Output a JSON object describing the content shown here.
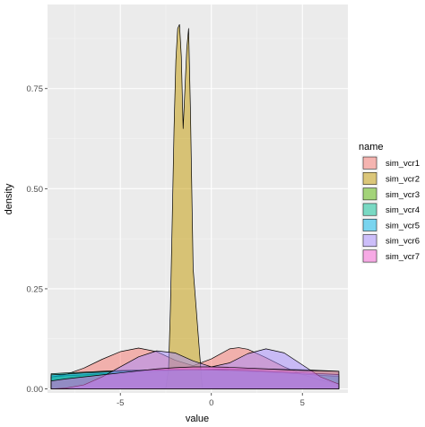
{
  "chart_data": {
    "type": "area",
    "subtype": "density",
    "xlabel": "value",
    "ylabel": "density",
    "xlim": [
      -9.0,
      7.5
    ],
    "ylim": [
      -0.01,
      0.96
    ],
    "x_ticks": [
      -5,
      0,
      5
    ],
    "y_ticks": [
      0.0,
      0.25,
      0.5,
      0.75
    ],
    "x_tick_labels": [
      "-5",
      "0",
      "5"
    ],
    "y_tick_labels": [
      "0.00",
      "0.25",
      "0.50",
      "0.75"
    ],
    "grid": true,
    "panel_background": "#ebebeb",
    "legend": {
      "title": "name",
      "position": "right"
    },
    "series": [
      {
        "name": "sim_vcr1",
        "color": "#F8766D",
        "x": [
          -8.8,
          -8,
          -7,
          -6,
          -5,
          -4,
          -3,
          -2,
          -1,
          0,
          1,
          1.5,
          2,
          3,
          4,
          5,
          6,
          7
        ],
        "y": [
          0.03,
          0.036,
          0.052,
          0.074,
          0.093,
          0.102,
          0.093,
          0.072,
          0.058,
          0.075,
          0.1,
          0.103,
          0.099,
          0.078,
          0.055,
          0.036,
          0.022,
          0.013
        ]
      },
      {
        "name": "sim_vcr2",
        "color": "#C49A00",
        "x": [
          -8.8,
          -3,
          -2.5,
          -2.35,
          -2.25,
          -2.15,
          -2.05,
          -1.95,
          -1.85,
          -1.75,
          -1.65,
          -1.55,
          -1.45,
          -1.35,
          -1.25,
          -1.15,
          -1.0,
          -0.5,
          7
        ],
        "y": [
          0,
          0,
          0.002,
          0.05,
          0.2,
          0.42,
          0.65,
          0.82,
          0.9,
          0.91,
          0.83,
          0.65,
          0.75,
          0.85,
          0.9,
          0.7,
          0.3,
          0.003,
          0
        ]
      },
      {
        "name": "sim_vcr3",
        "color": "#53B400",
        "x": [
          -8.8,
          -8,
          -7,
          -6,
          -5,
          -4,
          -3,
          -2,
          -1,
          0,
          1,
          2,
          3,
          4,
          5,
          6,
          7
        ],
        "y": [
          0.03,
          0.033,
          0.035,
          0.038,
          0.04,
          0.042,
          0.044,
          0.046,
          0.048,
          0.049,
          0.05,
          0.05,
          0.05,
          0.049,
          0.048,
          0.046,
          0.044
        ]
      },
      {
        "name": "sim_vcr4",
        "color": "#00C094",
        "x": [
          -8.8,
          -8,
          -7,
          -6,
          -5,
          -4,
          -3,
          -2,
          -1,
          0,
          1,
          2,
          3,
          4,
          5,
          6,
          7
        ],
        "y": [
          0.038,
          0.04,
          0.042,
          0.044,
          0.046,
          0.047,
          0.048,
          0.048,
          0.048,
          0.047,
          0.046,
          0.044,
          0.042,
          0.04,
          0.037,
          0.034,
          0.031
        ]
      },
      {
        "name": "sim_vcr5",
        "color": "#00B6EB",
        "x": [
          -8.8,
          -8,
          -7,
          -6,
          -5,
          -4,
          -3,
          -2,
          -1,
          0,
          1,
          2,
          3,
          4,
          5,
          6,
          7
        ],
        "y": [
          0.035,
          0.037,
          0.04,
          0.042,
          0.044,
          0.046,
          0.047,
          0.048,
          0.048,
          0.048,
          0.047,
          0.046,
          0.044,
          0.042,
          0.04,
          0.038,
          0.036
        ]
      },
      {
        "name": "sim_vcr6",
        "color": "#A58AFF",
        "x": [
          -8.8,
          -8,
          -7,
          -6,
          -5,
          -4,
          -3,
          -2,
          -1,
          0,
          1,
          2,
          3,
          4,
          5,
          6,
          7
        ],
        "y": [
          0.0,
          0.002,
          0.01,
          0.03,
          0.055,
          0.08,
          0.095,
          0.09,
          0.07,
          0.055,
          0.065,
          0.088,
          0.1,
          0.09,
          0.06,
          0.03,
          0.012
        ]
      },
      {
        "name": "sim_vcr7",
        "color": "#FB61D7",
        "x": [
          -8.8,
          -8,
          -7,
          -6,
          -5,
          -4,
          -3,
          -2,
          -1,
          0,
          1,
          2,
          3,
          4,
          5,
          6,
          7
        ],
        "y": [
          0.02,
          0.025,
          0.03,
          0.035,
          0.04,
          0.045,
          0.05,
          0.053,
          0.055,
          0.055,
          0.054,
          0.052,
          0.05,
          0.048,
          0.046,
          0.045,
          0.044
        ]
      }
    ]
  }
}
